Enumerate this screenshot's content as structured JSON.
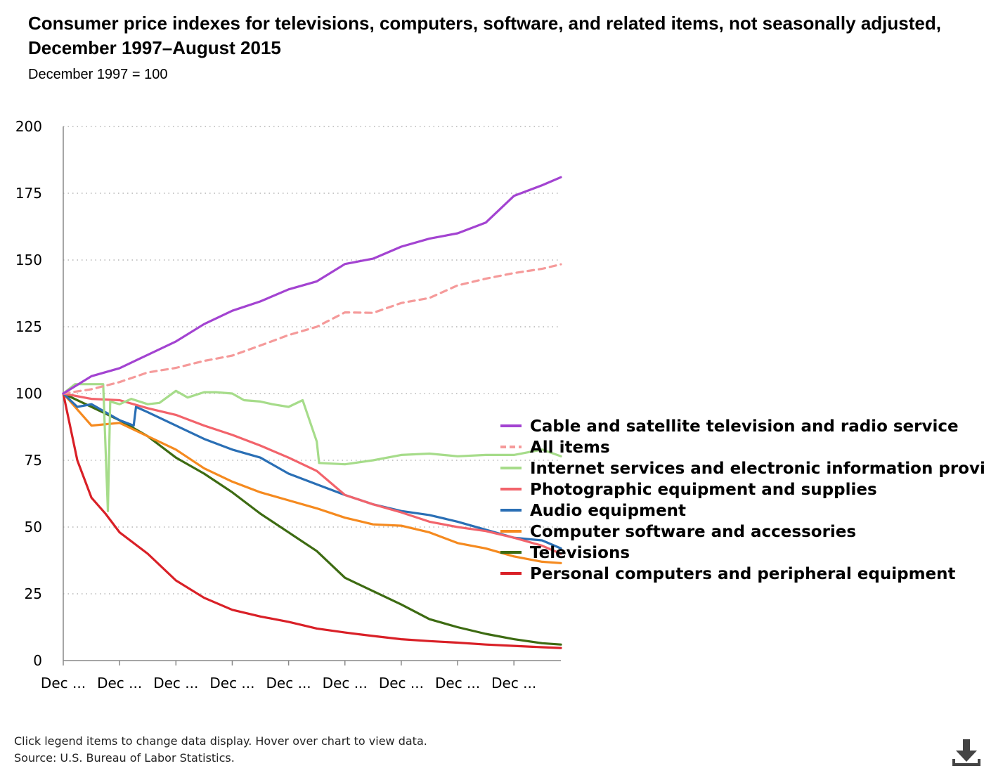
{
  "title": "Consumer price indexes for televisions, computers, software, and related items, not seasonally adjusted, December 1997–August 2015",
  "subtitle": "December 1997 = 100",
  "footer": {
    "instructions": "Click legend items to change data display. Hover over chart to view data.",
    "source": "Source: U.S. Bureau of Labor Statistics."
  },
  "download_icon": "download-icon",
  "chart_data": {
    "type": "line",
    "ylim": [
      0,
      200
    ],
    "y_ticks": [
      0,
      25,
      50,
      75,
      100,
      125,
      150,
      175,
      200
    ],
    "x_tick_labels": [
      "Dec ...",
      "Dec ...",
      "Dec ...",
      "Dec ...",
      "Dec ...",
      "Dec ...",
      "Dec ...",
      "Dec ...",
      "Dec ..."
    ],
    "x_start": "1997-12",
    "x_end": "2015-08",
    "grid": "horizontal-dotted",
    "legend_position": "right",
    "series": [
      {
        "name": "Cable and satellite television and radio service",
        "color": "#a343d1",
        "dashed": false,
        "points": [
          [
            "1997-12",
            100
          ],
          [
            "1998-12",
            106.5
          ],
          [
            "1999-12",
            109.5
          ],
          [
            "2000-12",
            114.5
          ],
          [
            "2001-12",
            119.5
          ],
          [
            "2002-12",
            126
          ],
          [
            "2003-12",
            131
          ],
          [
            "2004-12",
            134.5
          ],
          [
            "2005-12",
            139
          ],
          [
            "2006-12",
            142
          ],
          [
            "2007-12",
            148.5
          ],
          [
            "2008-12",
            150.5
          ],
          [
            "2009-12",
            155
          ],
          [
            "2010-12",
            158
          ],
          [
            "2011-12",
            160
          ],
          [
            "2012-12",
            164
          ],
          [
            "2013-12",
            174
          ],
          [
            "2014-12",
            178
          ],
          [
            "2015-08",
            181
          ]
        ]
      },
      {
        "name": "All items",
        "color": "#f59a9a",
        "dashed": true,
        "points": [
          [
            "1997-12",
            100
          ],
          [
            "1998-12",
            101.6
          ],
          [
            "1999-12",
            104.3
          ],
          [
            "2000-12",
            107.9
          ],
          [
            "2001-12",
            109.6
          ],
          [
            "2002-12",
            112.2
          ],
          [
            "2003-12",
            114.2
          ],
          [
            "2004-12",
            118
          ],
          [
            "2005-12",
            121.9
          ],
          [
            "2006-12",
            125
          ],
          [
            "2007-12",
            130.4
          ],
          [
            "2008-12",
            130.2
          ],
          [
            "2009-12",
            133.9
          ],
          [
            "2010-12",
            135.8
          ],
          [
            "2011-12",
            140.5
          ],
          [
            "2012-12",
            143
          ],
          [
            "2013-12",
            145.1
          ],
          [
            "2014-12",
            146.7
          ],
          [
            "2015-08",
            148.4
          ]
        ]
      },
      {
        "name": "Internet services and electronic information providers",
        "color": "#a6dc8a",
        "dashed": false,
        "points": [
          [
            "1997-12",
            100
          ],
          [
            "1998-05",
            103.5
          ],
          [
            "1998-12",
            103.5
          ],
          [
            "1999-05",
            103.5
          ],
          [
            "1999-07",
            56
          ],
          [
            "1999-08",
            97
          ],
          [
            "1999-12",
            96
          ],
          [
            "2000-05",
            98
          ],
          [
            "2000-12",
            96
          ],
          [
            "2001-05",
            96.5
          ],
          [
            "2001-12",
            101
          ],
          [
            "2002-05",
            98.5
          ],
          [
            "2002-12",
            100.5
          ],
          [
            "2003-05",
            100.5
          ],
          [
            "2003-12",
            100
          ],
          [
            "2004-05",
            97.5
          ],
          [
            "2004-12",
            97
          ],
          [
            "2005-05",
            96
          ],
          [
            "2005-12",
            95
          ],
          [
            "2006-06",
            97.5
          ],
          [
            "2006-12",
            82
          ],
          [
            "2007-01",
            74
          ],
          [
            "2007-12",
            73.5
          ],
          [
            "2008-12",
            75
          ],
          [
            "2009-12",
            77
          ],
          [
            "2010-12",
            77.5
          ],
          [
            "2011-12",
            76.5
          ],
          [
            "2012-12",
            77
          ],
          [
            "2013-12",
            77
          ],
          [
            "2014-12",
            79
          ],
          [
            "2015-08",
            76.5
          ]
        ]
      },
      {
        "name": "Photographic equipment and supplies",
        "color": "#f2636b",
        "dashed": false,
        "points": [
          [
            "1997-12",
            100
          ],
          [
            "1998-12",
            98
          ],
          [
            "1999-12",
            97.5
          ],
          [
            "2000-12",
            94.5
          ],
          [
            "2001-12",
            92
          ],
          [
            "2002-12",
            88
          ],
          [
            "2003-12",
            84.5
          ],
          [
            "2004-12",
            80.5
          ],
          [
            "2005-12",
            76
          ],
          [
            "2006-12",
            71
          ],
          [
            "2007-12",
            62
          ],
          [
            "2008-12",
            58.5
          ],
          [
            "2009-12",
            55.5
          ],
          [
            "2010-12",
            52
          ],
          [
            "2011-12",
            50
          ],
          [
            "2012-12",
            48.5
          ],
          [
            "2013-12",
            46
          ],
          [
            "2014-12",
            43
          ],
          [
            "2015-08",
            40
          ]
        ]
      },
      {
        "name": "Audio equipment",
        "color": "#2a6fb5",
        "dashed": false,
        "points": [
          [
            "1997-12",
            100
          ],
          [
            "1998-06",
            95
          ],
          [
            "1998-12",
            96
          ],
          [
            "1999-12",
            90
          ],
          [
            "2000-06",
            88
          ],
          [
            "2000-07",
            95
          ],
          [
            "2000-12",
            93
          ],
          [
            "2001-12",
            88
          ],
          [
            "2002-12",
            83
          ],
          [
            "2003-12",
            79
          ],
          [
            "2004-12",
            76
          ],
          [
            "2005-12",
            70
          ],
          [
            "2006-12",
            66
          ],
          [
            "2007-12",
            62
          ],
          [
            "2008-12",
            58.5
          ],
          [
            "2009-12",
            56
          ],
          [
            "2010-12",
            54.5
          ],
          [
            "2011-12",
            52
          ],
          [
            "2012-12",
            49
          ],
          [
            "2013-12",
            46
          ],
          [
            "2014-12",
            45
          ],
          [
            "2015-08",
            42
          ]
        ]
      },
      {
        "name": "Computer software and accessories",
        "color": "#f58a1f",
        "dashed": false,
        "points": [
          [
            "1997-12",
            100
          ],
          [
            "1998-12",
            88
          ],
          [
            "1999-12",
            89
          ],
          [
            "2000-12",
            84
          ],
          [
            "2001-12",
            79
          ],
          [
            "2002-12",
            72
          ],
          [
            "2003-12",
            67
          ],
          [
            "2004-12",
            63
          ],
          [
            "2005-12",
            60
          ],
          [
            "2006-12",
            57
          ],
          [
            "2007-12",
            53.5
          ],
          [
            "2008-12",
            51
          ],
          [
            "2009-12",
            50.5
          ],
          [
            "2010-12",
            48
          ],
          [
            "2011-12",
            44
          ],
          [
            "2012-12",
            42
          ],
          [
            "2013-12",
            39
          ],
          [
            "2014-12",
            37
          ],
          [
            "2015-08",
            36.5
          ]
        ]
      },
      {
        "name": "Televisions",
        "color": "#3d6b12",
        "dashed": false,
        "points": [
          [
            "1997-12",
            100
          ],
          [
            "1998-12",
            95
          ],
          [
            "1999-12",
            90
          ],
          [
            "2000-12",
            84
          ],
          [
            "2001-12",
            76
          ],
          [
            "2002-12",
            70
          ],
          [
            "2003-12",
            63
          ],
          [
            "2004-12",
            55
          ],
          [
            "2005-12",
            48
          ],
          [
            "2006-12",
            41
          ],
          [
            "2007-12",
            31
          ],
          [
            "2008-12",
            26
          ],
          [
            "2009-12",
            21
          ],
          [
            "2010-12",
            15.5
          ],
          [
            "2011-12",
            12.5
          ],
          [
            "2012-12",
            10
          ],
          [
            "2013-12",
            8
          ],
          [
            "2014-12",
            6.5
          ],
          [
            "2015-08",
            6
          ]
        ]
      },
      {
        "name": "Personal computers and peripheral equipment",
        "color": "#d92027",
        "dashed": false,
        "points": [
          [
            "1997-12",
            100
          ],
          [
            "1998-06",
            75
          ],
          [
            "1998-12",
            61
          ],
          [
            "1999-06",
            55
          ],
          [
            "1999-12",
            48
          ],
          [
            "2000-12",
            40
          ],
          [
            "2001-12",
            30
          ],
          [
            "2002-12",
            23.5
          ],
          [
            "2003-12",
            19
          ],
          [
            "2004-12",
            16.5
          ],
          [
            "2005-12",
            14.5
          ],
          [
            "2006-12",
            12
          ],
          [
            "2007-12",
            10.5
          ],
          [
            "2008-12",
            9.2
          ],
          [
            "2009-12",
            8
          ],
          [
            "2010-12",
            7.3
          ],
          [
            "2011-12",
            6.7
          ],
          [
            "2012-12",
            6
          ],
          [
            "2013-12",
            5.5
          ],
          [
            "2014-12",
            5
          ],
          [
            "2015-08",
            4.7
          ]
        ]
      }
    ]
  }
}
